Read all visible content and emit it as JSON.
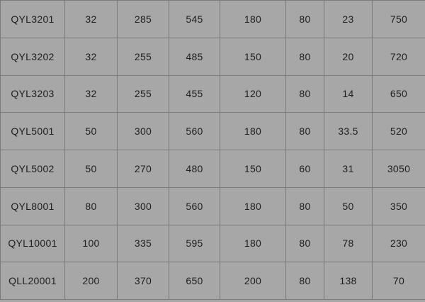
{
  "colors": {
    "background": "#a7a7a7",
    "border": "#7b7b7b",
    "text": "#202020"
  },
  "table": {
    "rows": [
      [
        "QYL3201",
        "32",
        "285",
        "545",
        "180",
        "80",
        "23",
        "750"
      ],
      [
        "QYL3202",
        "32",
        "255",
        "485",
        "150",
        "80",
        "20",
        "720"
      ],
      [
        "QYL3203",
        "32",
        "255",
        "455",
        "120",
        "80",
        "14",
        "650"
      ],
      [
        "QYL5001",
        "50",
        "300",
        "560",
        "180",
        "80",
        "33.5",
        "520"
      ],
      [
        "QYL5002",
        "50",
        "270",
        "480",
        "150",
        "60",
        "31",
        "3050"
      ],
      [
        "QYL8001",
        "80",
        "300",
        "560",
        "180",
        "80",
        "50",
        "350"
      ],
      [
        "QYL10001",
        "100",
        "335",
        "595",
        "180",
        "80",
        "78",
        "230"
      ],
      [
        "QLL20001",
        "200",
        "370",
        "650",
        "200",
        "80",
        "138",
        "70"
      ]
    ]
  }
}
